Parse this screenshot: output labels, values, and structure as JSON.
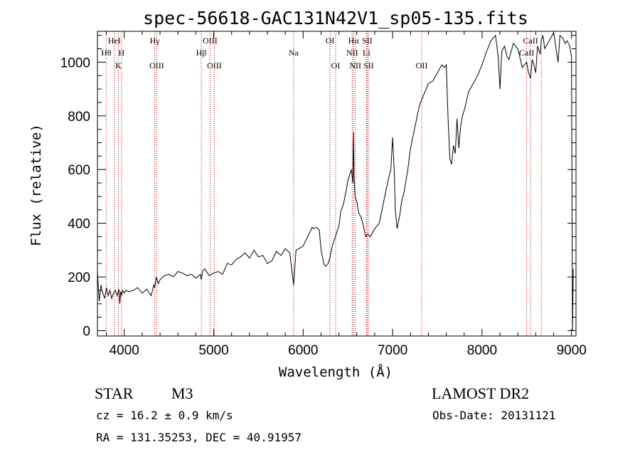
{
  "chart_data": {
    "type": "line",
    "title": "spec-56618-GAC131N42V1_sp05-135.fits",
    "xlabel": "Wavelength (Å)",
    "ylabel": "Flux (relative)",
    "xlim": [
      3700,
      9050
    ],
    "ylim": [
      -20,
      1115
    ],
    "x_ticks": [
      4000,
      5000,
      6000,
      7000,
      8000,
      9000
    ],
    "y_ticks": [
      0,
      200,
      400,
      600,
      800,
      1000
    ],
    "series": [
      {
        "x": [
          3700,
          3720,
          3740,
          3760,
          3780,
          3800,
          3820,
          3840,
          3860,
          3880,
          3900,
          3920,
          3940,
          3950,
          3960,
          3970,
          3980,
          4000,
          4020,
          4050,
          4100,
          4150,
          4200,
          4250,
          4300,
          4330,
          4340,
          4360,
          4380,
          4400,
          4450,
          4500,
          4550,
          4600,
          4650,
          4700,
          4750,
          4800,
          4850,
          4861,
          4880,
          4900,
          4950,
          5000,
          5050,
          5100,
          5150,
          5200,
          5250,
          5300,
          5350,
          5400,
          5450,
          5500,
          5550,
          5600,
          5650,
          5700,
          5750,
          5800,
          5850,
          5893,
          5920,
          5950,
          6000,
          6050,
          6080,
          6100,
          6120,
          6150,
          6180,
          6200,
          6230,
          6250,
          6280,
          6300,
          6330,
          6360,
          6400,
          6420,
          6450,
          6480,
          6500,
          6520,
          6540,
          6555,
          6563,
          6570,
          6580,
          6600,
          6620,
          6650,
          6680,
          6700,
          6720,
          6750,
          6800,
          6850,
          6900,
          6950,
          6980,
          7000,
          7020,
          7030,
          7050,
          7080,
          7100,
          7130,
          7150,
          7170,
          7200,
          7250,
          7300,
          7350,
          7400,
          7450,
          7500,
          7550,
          7580,
          7600,
          7620,
          7640,
          7660,
          7680,
          7700,
          7720,
          7740,
          7760,
          7780,
          7800,
          7850,
          7900,
          7950,
          8000,
          8050,
          8100,
          8150,
          8180,
          8200,
          8220,
          8250,
          8280,
          8300,
          8350,
          8400,
          8450,
          8498,
          8520,
          8542,
          8560,
          8580,
          8600,
          8620,
          8650,
          8662,
          8680,
          8700,
          8750,
          8800,
          8850,
          8870,
          8900,
          8930,
          8950,
          8980,
          9000,
          9010,
          9020
        ],
        "y": [
          220,
          110,
          170,
          140,
          120,
          160,
          130,
          150,
          120,
          140,
          150,
          130,
          155,
          100,
          145,
          130,
          150,
          140,
          150,
          145,
          150,
          160,
          140,
          155,
          130,
          170,
          160,
          200,
          175,
          190,
          205,
          210,
          200,
          220,
          215,
          205,
          210,
          195,
          210,
          190,
          225,
          230,
          205,
          215,
          220,
          210,
          250,
          245,
          265,
          275,
          290,
          270,
          300,
          275,
          280,
          250,
          260,
          295,
          280,
          305,
          290,
          170,
          300,
          305,
          315,
          350,
          370,
          385,
          380,
          385,
          375,
          300,
          250,
          240,
          250,
          275,
          320,
          350,
          390,
          445,
          470,
          520,
          560,
          580,
          600,
          550,
          740,
          570,
          500,
          480,
          440,
          420,
          380,
          350,
          360,
          350,
          380,
          400,
          480,
          560,
          600,
          720,
          580,
          450,
          380,
          430,
          480,
          520,
          560,
          600,
          680,
          760,
          840,
          880,
          920,
          930,
          960,
          990,
          980,
          990,
          790,
          640,
          620,
          690,
          660,
          790,
          680,
          760,
          800,
          820,
          890,
          920,
          950,
          990,
          1040,
          1080,
          1100,
          1020,
          900,
          1040,
          1060,
          1020,
          1010,
          1070,
          1050,
          980,
          1000,
          960,
          940,
          1010,
          990,
          960,
          1060,
          1030,
          1080,
          1100,
          1050,
          1080,
          1110,
          1000,
          1100,
          1090,
          1070,
          1080,
          1060,
          1020,
          0,
          230
        ]
      }
    ],
    "line_labels": [
      {
        "name": "Hθ",
        "x": 3798,
        "row": 2
      },
      {
        "name": "HeI",
        "x": 3889,
        "row": 1
      },
      {
        "name": "H",
        "x": 3969,
        "row": 2
      },
      {
        "name": "K",
        "x": 3934,
        "row": 3
      },
      {
        "name": "Hγ",
        "x": 4341,
        "row": 1
      },
      {
        "name": "OIII",
        "x": 4363,
        "row": 3
      },
      {
        "name": "Hβ",
        "x": 4861,
        "row": 2
      },
      {
        "name": "OIII",
        "x": 4959,
        "row": 1
      },
      {
        "name": "OIII",
        "x": 5007,
        "row": 3
      },
      {
        "name": "Na",
        "x": 5893,
        "row": 2
      },
      {
        "name": "OI",
        "x": 6300,
        "row": 1
      },
      {
        "name": "OI",
        "x": 6363,
        "row": 3
      },
      {
        "name": "Hα",
        "x": 6563,
        "row": 1
      },
      {
        "name": "NII",
        "x": 6548,
        "row": 2
      },
      {
        "name": "NII",
        "x": 6583,
        "row": 3
      },
      {
        "name": "SII",
        "x": 6716,
        "row": 1
      },
      {
        "name": "Li",
        "x": 6708,
        "row": 2
      },
      {
        "name": "SII",
        "x": 6731,
        "row": 3
      },
      {
        "name": "OII",
        "x": 7325,
        "row": 3
      },
      {
        "name": "CaII",
        "x": 8542,
        "row": 1
      },
      {
        "name": "CaII",
        "x": 8498,
        "row": 2
      }
    ],
    "line_positions": [
      3798,
      3889,
      3934,
      3969,
      4341,
      4363,
      4861,
      4959,
      5007,
      5893,
      6300,
      6363,
      6548,
      6563,
      6583,
      6708,
      6716,
      6731,
      7325,
      8498,
      8542,
      8662
    ]
  },
  "info": {
    "class": "STAR",
    "subclass": "M3",
    "survey": "LAMOST DR2",
    "cz": "cz = 16.2 ± 0.9 km/s",
    "obs_date": "Obs-Date: 20131121",
    "coords": "RA = 131.35253, DEC =  40.91957"
  }
}
